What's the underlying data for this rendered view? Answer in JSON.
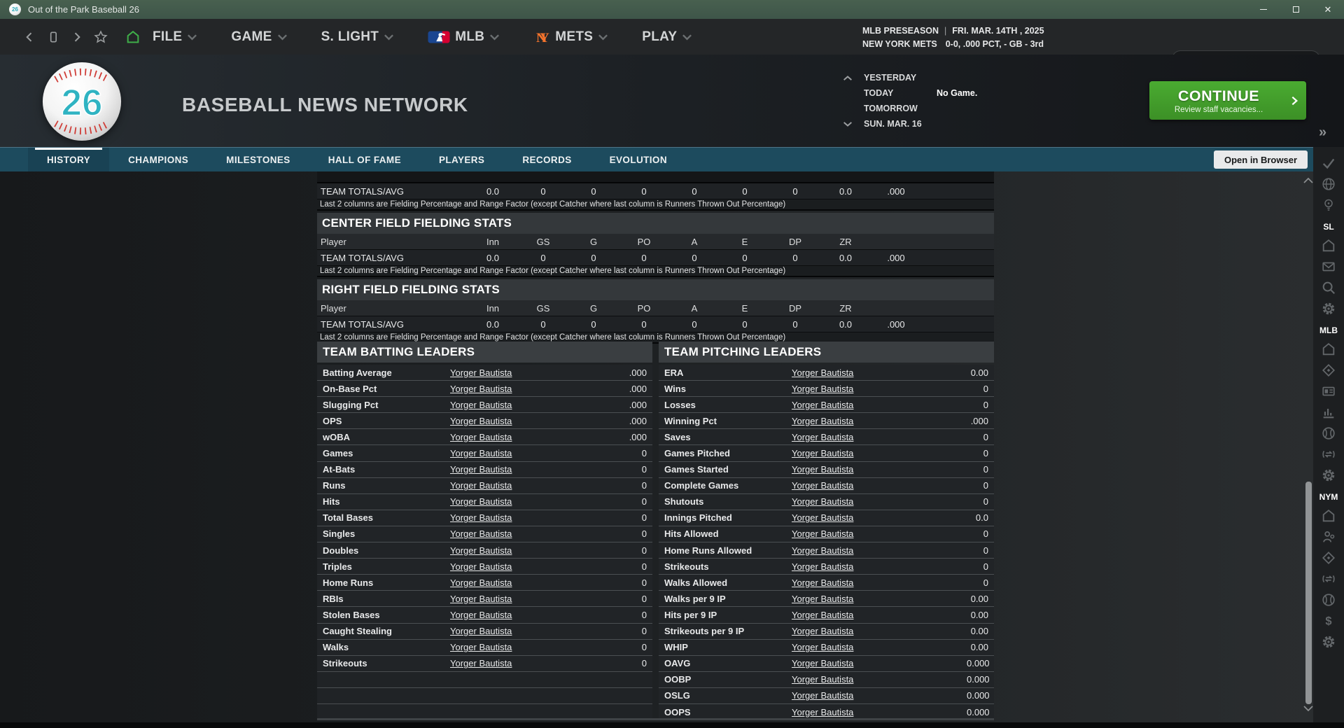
{
  "window": {
    "title": "Out of the Park Baseball 26",
    "ball_number": "26"
  },
  "colors": {
    "titlebar_green": "#41584b",
    "tab_teal": "#1d4b5e",
    "continue_green": "#43a02c",
    "ball_teal": "#2fb3c2",
    "mets_orange": "#f7742c",
    "mlb_blue": "#1a4691",
    "mlb_red": "#d50032"
  },
  "nav": {
    "menus": [
      {
        "label": "FILE",
        "logo": ""
      },
      {
        "label": "GAME",
        "logo": ""
      },
      {
        "label": "S. LIGHT",
        "logo": ""
      },
      {
        "label": "MLB",
        "logo": "mlb"
      },
      {
        "label": "METS",
        "logo": "mets"
      },
      {
        "label": "PLAY",
        "logo": ""
      }
    ],
    "status": {
      "phase": "MLB PRESEASON",
      "separator": "|",
      "date": "FRI. MAR. 14TH , 2025",
      "team": "NEW YORK METS",
      "record": "0-0, .000 PCT, - GB - 3rd"
    },
    "search_placeholder": ""
  },
  "header": {
    "title": "BASEBALL NEWS NETWORK",
    "schedule": [
      {
        "label": "YESTERDAY",
        "note": "",
        "chevron": "up"
      },
      {
        "label": "TODAY",
        "note": "No Game.",
        "chevron": ""
      },
      {
        "label": "TOMORROW",
        "note": "",
        "chevron": ""
      },
      {
        "label": "SUN. MAR. 16",
        "note": "",
        "chevron": "down"
      }
    ],
    "continue": {
      "label": "CONTINUE",
      "sub": "Review staff vacancies..."
    }
  },
  "tabs": {
    "items": [
      "HISTORY",
      "CHAMPIONS",
      "MILESTONES",
      "HALL OF FAME",
      "PLAYERS",
      "RECORDS",
      "EVOLUTION"
    ],
    "active": "HISTORY",
    "open_in_browser": "Open in Browser"
  },
  "fielding": {
    "columns": [
      "Player",
      "Inn",
      "GS",
      "G",
      "PO",
      "A",
      "E",
      "DP",
      "ZR",
      ""
    ],
    "totals": [
      "TEAM TOTALS/AVG",
      "0.0",
      "0",
      "0",
      "0",
      "0",
      "0",
      "0",
      "0.0",
      ".000"
    ],
    "footnote": "Last 2 columns are Fielding Percentage and Range Factor (except Catcher where last column is Runners Thrown Out Percentage)",
    "sections": [
      {
        "title": "",
        "show_header": false
      },
      {
        "title": "CENTER FIELD FIELDING STATS",
        "show_header": true
      },
      {
        "title": "RIGHT FIELD FIELDING STATS",
        "show_header": true
      }
    ]
  },
  "leaders": {
    "batting": {
      "title": "TEAM BATTING LEADERS",
      "rows": [
        {
          "label": "Batting Average",
          "player": "Yorger Bautista",
          "value": ".000"
        },
        {
          "label": "On-Base Pct",
          "player": "Yorger Bautista",
          "value": ".000"
        },
        {
          "label": "Slugging Pct",
          "player": "Yorger Bautista",
          "value": ".000"
        },
        {
          "label": "OPS",
          "player": "Yorger Bautista",
          "value": ".000"
        },
        {
          "label": "wOBA",
          "player": "Yorger Bautista",
          "value": ".000"
        },
        {
          "label": "Games",
          "player": "Yorger Bautista",
          "value": "0"
        },
        {
          "label": "At-Bats",
          "player": "Yorger Bautista",
          "value": "0"
        },
        {
          "label": "Runs",
          "player": "Yorger Bautista",
          "value": "0"
        },
        {
          "label": "Hits",
          "player": "Yorger Bautista",
          "value": "0"
        },
        {
          "label": "Total Bases",
          "player": "Yorger Bautista",
          "value": "0"
        },
        {
          "label": "Singles",
          "player": "Yorger Bautista",
          "value": "0"
        },
        {
          "label": "Doubles",
          "player": "Yorger Bautista",
          "value": "0"
        },
        {
          "label": "Triples",
          "player": "Yorger Bautista",
          "value": "0"
        },
        {
          "label": "Home Runs",
          "player": "Yorger Bautista",
          "value": "0"
        },
        {
          "label": "RBIs",
          "player": "Yorger Bautista",
          "value": "0"
        },
        {
          "label": "Stolen Bases",
          "player": "Yorger Bautista",
          "value": "0"
        },
        {
          "label": "Caught Stealing",
          "player": "Yorger Bautista",
          "value": "0"
        },
        {
          "label": "Walks",
          "player": "Yorger Bautista",
          "value": "0"
        },
        {
          "label": "Strikeouts",
          "player": "Yorger Bautista",
          "value": "0"
        }
      ],
      "empty_rows": 3
    },
    "pitching": {
      "title": "TEAM PITCHING LEADERS",
      "rows": [
        {
          "label": "ERA",
          "player": "Yorger Bautista",
          "value": "0.00"
        },
        {
          "label": "Wins",
          "player": "Yorger Bautista",
          "value": "0"
        },
        {
          "label": "Losses",
          "player": "Yorger Bautista",
          "value": "0"
        },
        {
          "label": "Winning Pct",
          "player": "Yorger Bautista",
          "value": ".000"
        },
        {
          "label": "Saves",
          "player": "Yorger Bautista",
          "value": "0"
        },
        {
          "label": "Games Pitched",
          "player": "Yorger Bautista",
          "value": "0"
        },
        {
          "label": "Games Started",
          "player": "Yorger Bautista",
          "value": "0"
        },
        {
          "label": "Complete Games",
          "player": "Yorger Bautista",
          "value": "0"
        },
        {
          "label": "Shutouts",
          "player": "Yorger Bautista",
          "value": "0"
        },
        {
          "label": "Innings Pitched",
          "player": "Yorger Bautista",
          "value": "0.0"
        },
        {
          "label": "Hits Allowed",
          "player": "Yorger Bautista",
          "value": "0"
        },
        {
          "label": "Home Runs Allowed",
          "player": "Yorger Bautista",
          "value": "0"
        },
        {
          "label": "Strikeouts",
          "player": "Yorger Bautista",
          "value": "0"
        },
        {
          "label": "Walks Allowed",
          "player": "Yorger Bautista",
          "value": "0"
        },
        {
          "label": "Walks per 9 IP",
          "player": "Yorger Bautista",
          "value": "0.00"
        },
        {
          "label": "Hits per 9 IP",
          "player": "Yorger Bautista",
          "value": "0.00"
        },
        {
          "label": "Strikeouts per 9 IP",
          "player": "Yorger Bautista",
          "value": "0.00"
        },
        {
          "label": "WHIP",
          "player": "Yorger Bautista",
          "value": "0.00"
        },
        {
          "label": "OAVG",
          "player": "Yorger Bautista",
          "value": "0.000"
        },
        {
          "label": "OOBP",
          "player": "Yorger Bautista",
          "value": "0.000"
        },
        {
          "label": "OSLG",
          "player": "Yorger Bautista",
          "value": "0.000"
        },
        {
          "label": "OOPS",
          "player": "Yorger Bautista",
          "value": "0.000"
        }
      ],
      "empty_rows": 0
    }
  },
  "sidebar": {
    "items": [
      {
        "kind": "icon",
        "name": "check"
      },
      {
        "kind": "icon",
        "name": "globe"
      },
      {
        "kind": "icon",
        "name": "lightbulb"
      },
      {
        "kind": "label",
        "text": "SL"
      },
      {
        "kind": "icon",
        "name": "home"
      },
      {
        "kind": "icon",
        "name": "mail"
      },
      {
        "kind": "icon",
        "name": "search"
      },
      {
        "kind": "icon",
        "name": "gear"
      },
      {
        "kind": "label",
        "text": "MLB"
      },
      {
        "kind": "icon",
        "name": "home"
      },
      {
        "kind": "icon",
        "name": "diamond"
      },
      {
        "kind": "icon",
        "name": "card"
      },
      {
        "kind": "icon",
        "name": "stats"
      },
      {
        "kind": "icon",
        "name": "baseball"
      },
      {
        "kind": "icon",
        "name": "trade"
      },
      {
        "kind": "icon",
        "name": "gear"
      },
      {
        "kind": "label",
        "text": "NYM"
      },
      {
        "kind": "icon",
        "name": "home"
      },
      {
        "kind": "icon",
        "name": "coach"
      },
      {
        "kind": "icon",
        "name": "diamond"
      },
      {
        "kind": "icon",
        "name": "trade"
      },
      {
        "kind": "icon",
        "name": "baseball"
      },
      {
        "kind": "icon",
        "name": "dollar"
      },
      {
        "kind": "icon",
        "name": "gear"
      }
    ],
    "collapse_glyph": "»"
  }
}
